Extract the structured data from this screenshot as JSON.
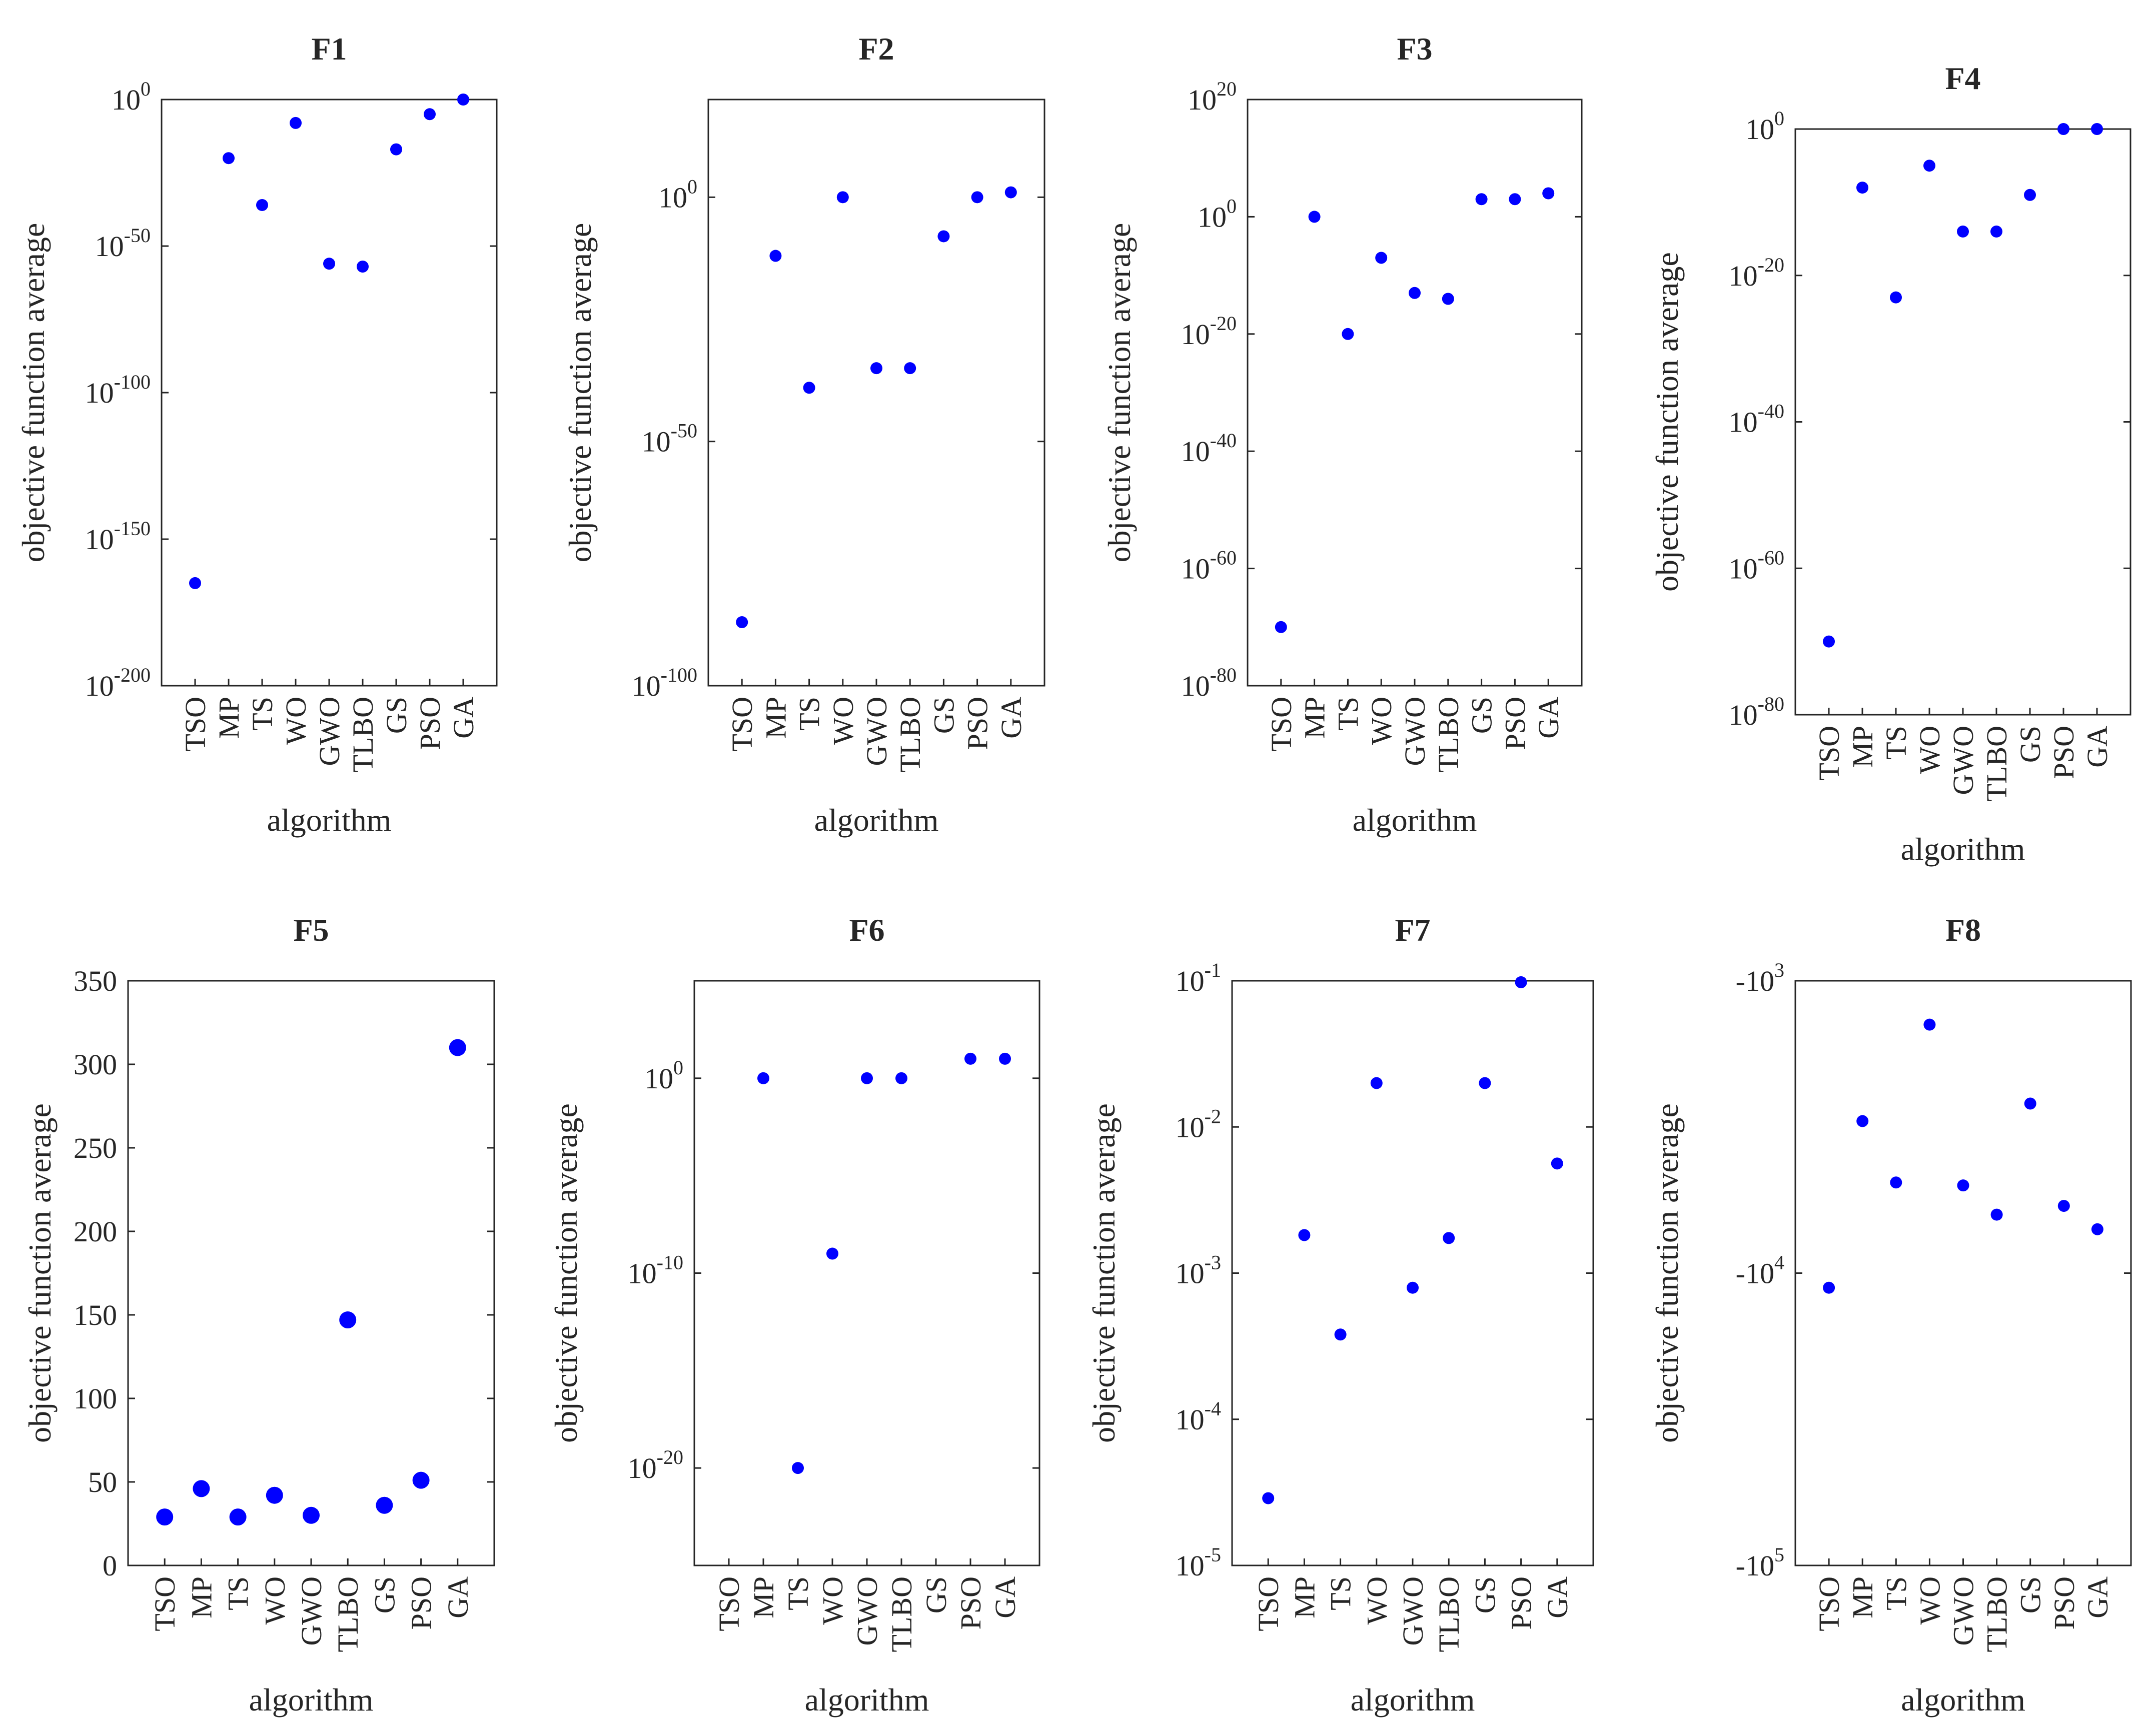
{
  "figure": {
    "x_label": "algorithm",
    "y_label": "objective function average",
    "point_color": "#0000ff",
    "axis_color": "#262626"
  },
  "chart_data": [
    {
      "title": "F1",
      "type": "scatter",
      "yscale": "log",
      "categories": [
        "TSO",
        "MP",
        "TS",
        "WO",
        "GWO",
        "TLBO",
        "GS",
        "PSO",
        "GA"
      ],
      "ytick_exponents": [
        0,
        -50,
        -100,
        -150,
        -200
      ],
      "ylim_exp": [
        -200,
        0
      ],
      "values_exp": [
        -165,
        -20,
        -36,
        -8,
        -56,
        -57,
        -17,
        -5,
        0
      ],
      "xlabel": "algorithm",
      "ylabel": "objective function average"
    },
    {
      "title": "F2",
      "type": "scatter",
      "yscale": "log",
      "categories": [
        "TSO",
        "MP",
        "TS",
        "WO",
        "GWO",
        "TLBO",
        "GS",
        "PSO",
        "GA"
      ],
      "ytick_exponents": [
        0,
        -50,
        -100
      ],
      "ylim_exp": [
        -100,
        20
      ],
      "values_exp": [
        -87,
        -12,
        -39,
        0,
        -35,
        -35,
        -8,
        0,
        1
      ],
      "xlabel": "algorithm",
      "ylabel": "objective function average"
    },
    {
      "title": "F3",
      "type": "scatter",
      "yscale": "log",
      "categories": [
        "TSO",
        "MP",
        "TS",
        "WO",
        "GWO",
        "TLBO",
        "GS",
        "PSO",
        "GA"
      ],
      "ytick_exponents": [
        20,
        0,
        -20,
        -40,
        -60,
        -80
      ],
      "ylim_exp": [
        -80,
        20
      ],
      "values_exp": [
        -70,
        0,
        -20,
        -7,
        -13,
        -14,
        3,
        3,
        4
      ],
      "xlabel": "algorithm",
      "ylabel": "objective function average"
    },
    {
      "title": "F4",
      "type": "scatter",
      "yscale": "log",
      "categories": [
        "TSO",
        "MP",
        "TS",
        "WO",
        "GWO",
        "TLBO",
        "GS",
        "PSO",
        "GA"
      ],
      "ytick_exponents": [
        0,
        -20,
        -40,
        -60,
        -80
      ],
      "ylim_exp": [
        -80,
        0
      ],
      "values_exp": [
        -70,
        -8,
        -23,
        -5,
        -14,
        -14,
        -9,
        0,
        0
      ],
      "xlabel": "algorithm",
      "ylabel": "objective function average"
    },
    {
      "title": "F5",
      "type": "scatter",
      "yscale": "linear",
      "categories": [
        "TSO",
        "MP",
        "TS",
        "WO",
        "GWO",
        "TLBO",
        "GS",
        "PSO",
        "GA"
      ],
      "yticks": [
        0,
        50,
        100,
        150,
        200,
        250,
        300,
        350
      ],
      "ylim": [
        0,
        350
      ],
      "values": [
        29,
        46,
        29,
        42,
        30,
        147,
        36,
        51,
        310
      ],
      "xlabel": "algorithm",
      "ylabel": "objective function average"
    },
    {
      "title": "F6",
      "type": "scatter",
      "yscale": "log",
      "categories": [
        "TSO",
        "MP",
        "TS",
        "WO",
        "GWO",
        "TLBO",
        "GS",
        "PSO",
        "GA"
      ],
      "ytick_exponents": [
        0,
        -10,
        -20
      ],
      "ylim_exp": [
        -25,
        5
      ],
      "values_exp": [
        null,
        0,
        -20,
        -9,
        0,
        0,
        null,
        1,
        1
      ],
      "xlabel": "algorithm",
      "ylabel": "objective function average"
    },
    {
      "title": "F7",
      "type": "scatter",
      "yscale": "log",
      "categories": [
        "TSO",
        "MP",
        "TS",
        "WO",
        "GWO",
        "TLBO",
        "GS",
        "PSO",
        "GA"
      ],
      "ytick_exponents": [
        -1,
        -2,
        -3,
        -4,
        -5
      ],
      "ylim_exp": [
        -5,
        -1
      ],
      "values_exp": [
        -4.54,
        -2.74,
        -3.42,
        -1.7,
        -3.1,
        -2.76,
        -1.7,
        -1.01,
        -2.25
      ],
      "xlabel": "algorithm",
      "ylabel": "objective function average"
    },
    {
      "title": "F8",
      "type": "scatter",
      "yscale": "neglog",
      "categories": [
        "TSO",
        "MP",
        "TS",
        "WO",
        "GWO",
        "TLBO",
        "GS",
        "PSO",
        "GA"
      ],
      "ytick_exponents": [
        3,
        4,
        5
      ],
      "ytick_sign": "-",
      "ylim_exp": [
        3,
        5
      ],
      "values_exp": [
        4.05,
        3.48,
        3.69,
        3.15,
        3.7,
        3.8,
        3.42,
        3.77,
        3.85
      ],
      "xlabel": "algorithm",
      "ylabel": "objective function average"
    }
  ]
}
